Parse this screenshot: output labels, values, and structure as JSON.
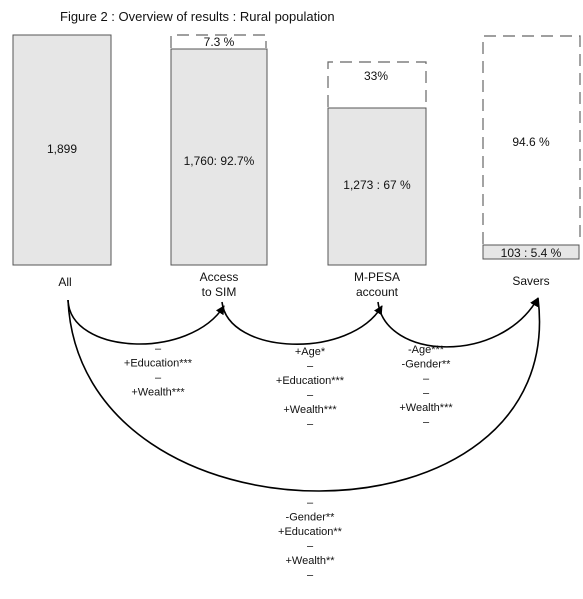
{
  "title": "Figure 2 : Overview of results : Rural population",
  "stages": [
    {
      "id": "all",
      "label_lines": [
        "All"
      ],
      "value_label": "1,899"
    },
    {
      "id": "sim",
      "label_lines": [
        "Access",
        "to SIM"
      ],
      "value_label": "1,760: 92.7%",
      "remainder_label": "7.3 %"
    },
    {
      "id": "mpesa",
      "label_lines": [
        "M-PESA",
        "account"
      ],
      "value_label": "1,273 : 67 %",
      "remainder_label": "33%"
    },
    {
      "id": "savers",
      "label_lines": [
        "Savers"
      ],
      "value_label": "103 : 5.4 %",
      "remainder_label": "94.6 %"
    }
  ],
  "factor_groups": [
    {
      "id": "all-to-sim",
      "lines": [
        "–",
        "+Education***",
        "–",
        "+Wealth***"
      ]
    },
    {
      "id": "sim-to-mpesa",
      "lines": [
        "+Age*",
        "–",
        "+Education***",
        "–",
        "+Wealth***",
        "–"
      ]
    },
    {
      "id": "mpesa-to-savers",
      "lines": [
        "-Age***",
        "-Gender**",
        "–",
        "–",
        "+Wealth***",
        "–"
      ]
    },
    {
      "id": "all-to-savers",
      "lines": [
        "–",
        "-Gender**",
        "+Education**",
        "–",
        "+Wealth**",
        "–"
      ]
    }
  ]
}
